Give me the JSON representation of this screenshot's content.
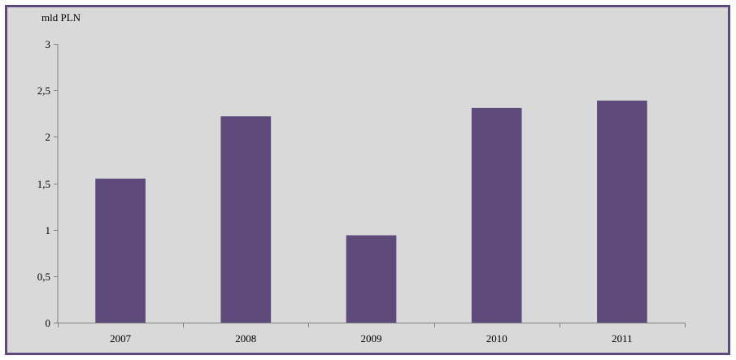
{
  "chart_data": {
    "type": "bar",
    "title": "",
    "xlabel": "",
    "ylabel": "mld PLN",
    "categories": [
      "2007",
      "2008",
      "2009",
      "2010",
      "2011"
    ],
    "values": [
      1.55,
      2.22,
      0.94,
      2.31,
      2.39
    ],
    "ylim": [
      0,
      3
    ],
    "yticks": [
      0,
      0.5,
      1,
      1.5,
      2,
      2.5,
      3
    ],
    "ytick_labels": [
      "0",
      "0,5",
      "1",
      "1,5",
      "2",
      "2,5",
      "3"
    ],
    "grid": false,
    "legend": "none",
    "colors": {
      "bar": "#5f4b7b",
      "background": "#d9d9d9",
      "border": "#5f4b7b",
      "axis": "#808080"
    }
  }
}
